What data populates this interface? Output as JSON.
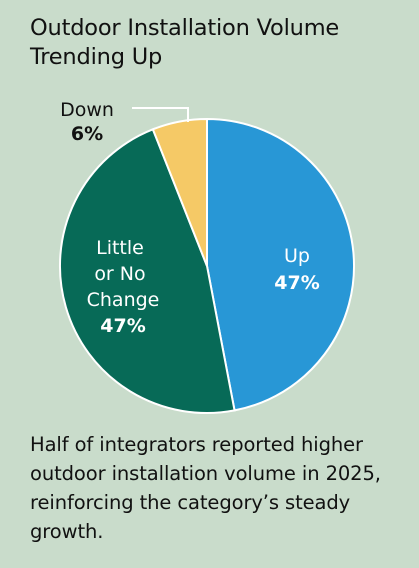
{
  "title": "Outdoor Installation Volume Trending Up",
  "caption": "Half of integrators reported higher outdoor installation volume in 2025, reinforcing the category’s steady growth.",
  "colors": {
    "background": "#c9dccb",
    "up": "#2897d6",
    "little_or_no_change": "#076a57",
    "down": "#f5c966"
  },
  "chart_data": {
    "type": "pie",
    "title": "Outdoor Installation Volume Trending Up",
    "slices": [
      {
        "label": "Up",
        "value": 47,
        "value_label": "47%",
        "color": "#2897d6"
      },
      {
        "label": "Little or No Change",
        "value": 47,
        "value_label": "47%",
        "color": "#076a57"
      },
      {
        "label": "Down",
        "value": 6,
        "value_label": "6%",
        "color": "#f5c966"
      }
    ]
  }
}
